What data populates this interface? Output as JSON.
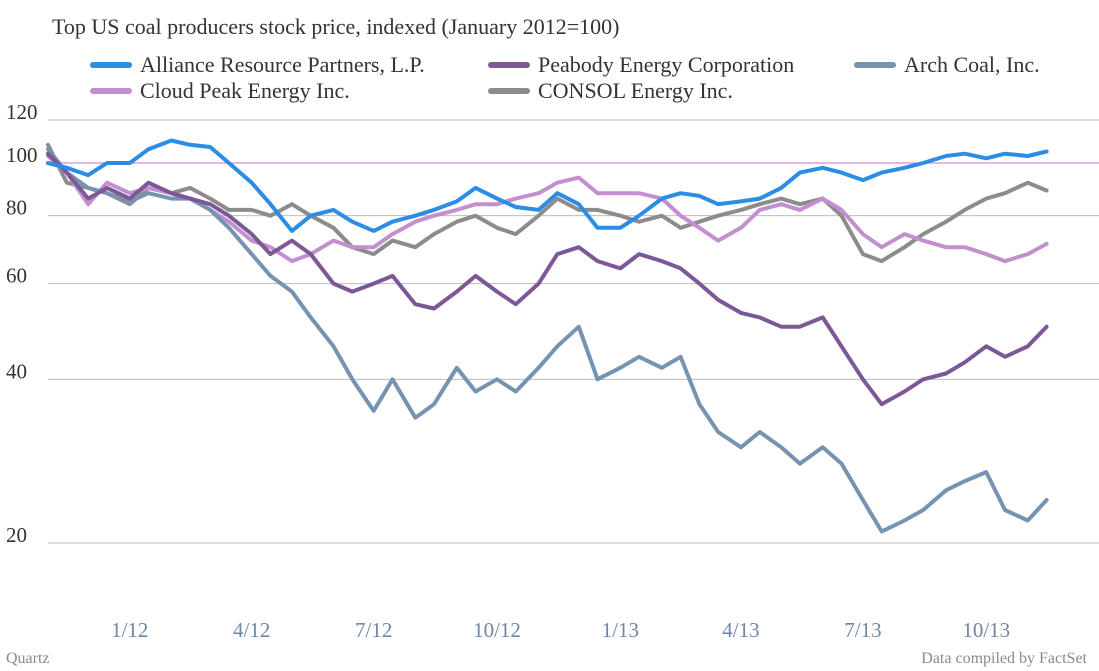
{
  "chart_data": {
    "type": "line",
    "title": "Top US coal producers stock price, indexed (January 2012=100)",
    "xlabel": "",
    "ylabel": "",
    "y_scale": "log",
    "ylim": [
      20,
      120
    ],
    "yticks": [
      20,
      40,
      60,
      80,
      100,
      120
    ],
    "reference_line": 100,
    "reference_line_color": "#d98ad6",
    "x_ticks": [
      "1/12",
      "4/12",
      "7/12",
      "10/12",
      "1/13",
      "4/13",
      "7/13",
      "10/13"
    ],
    "x_tick_dates": [
      "2012-01-01",
      "2012-04-01",
      "2012-07-01",
      "2012-10-01",
      "2013-01-01",
      "2013-04-01",
      "2013-07-01",
      "2013-10-01"
    ],
    "xlim": [
      "2011-11-01",
      "2013-12-01"
    ],
    "legend_position": "top",
    "series": [
      {
        "name": "Alliance Resource Partners, L.P.",
        "color": "#2b8de4",
        "points": [
          [
            "2011-11-01",
            100
          ],
          [
            "2011-11-15",
            98
          ],
          [
            "2011-12-01",
            95
          ],
          [
            "2011-12-15",
            100
          ],
          [
            "2012-01-01",
            100
          ],
          [
            "2012-01-15",
            106
          ],
          [
            "2012-02-01",
            110
          ],
          [
            "2012-02-15",
            108
          ],
          [
            "2012-03-01",
            107
          ],
          [
            "2012-03-15",
            100
          ],
          [
            "2012-04-01",
            92
          ],
          [
            "2012-04-15",
            84
          ],
          [
            "2012-05-01",
            75
          ],
          [
            "2012-05-15",
            80
          ],
          [
            "2012-06-01",
            82
          ],
          [
            "2012-06-15",
            78
          ],
          [
            "2012-07-01",
            75
          ],
          [
            "2012-07-15",
            78
          ],
          [
            "2012-08-01",
            80
          ],
          [
            "2012-08-15",
            82
          ],
          [
            "2012-09-01",
            85
          ],
          [
            "2012-09-15",
            90
          ],
          [
            "2012-10-01",
            86
          ],
          [
            "2012-10-15",
            83
          ],
          [
            "2012-11-01",
            82
          ],
          [
            "2012-11-15",
            88
          ],
          [
            "2012-12-01",
            84
          ],
          [
            "2012-12-15",
            76
          ],
          [
            "2013-01-01",
            76
          ],
          [
            "2013-01-15",
            80
          ],
          [
            "2013-02-01",
            86
          ],
          [
            "2013-02-15",
            88
          ],
          [
            "2013-03-01",
            87
          ],
          [
            "2013-03-15",
            84
          ],
          [
            "2013-04-01",
            85
          ],
          [
            "2013-04-15",
            86
          ],
          [
            "2013-05-01",
            90
          ],
          [
            "2013-05-15",
            96
          ],
          [
            "2013-06-01",
            98
          ],
          [
            "2013-06-15",
            96
          ],
          [
            "2013-07-01",
            93
          ],
          [
            "2013-07-15",
            96
          ],
          [
            "2013-08-01",
            98
          ],
          [
            "2013-08-15",
            100
          ],
          [
            "2013-09-01",
            103
          ],
          [
            "2013-09-15",
            104
          ],
          [
            "2013-10-01",
            102
          ],
          [
            "2013-10-15",
            104
          ],
          [
            "2013-11-01",
            103
          ],
          [
            "2013-11-15",
            105
          ]
        ]
      },
      {
        "name": "Peabody Energy Corporation",
        "color": "#7d5896",
        "points": [
          [
            "2011-11-01",
            104
          ],
          [
            "2011-11-15",
            96
          ],
          [
            "2011-12-01",
            86
          ],
          [
            "2011-12-15",
            90
          ],
          [
            "2012-01-01",
            86
          ],
          [
            "2012-01-15",
            92
          ],
          [
            "2012-02-01",
            88
          ],
          [
            "2012-02-15",
            86
          ],
          [
            "2012-03-01",
            84
          ],
          [
            "2012-03-15",
            80
          ],
          [
            "2012-04-01",
            74
          ],
          [
            "2012-04-15",
            68
          ],
          [
            "2012-05-01",
            72
          ],
          [
            "2012-05-15",
            68
          ],
          [
            "2012-06-01",
            60
          ],
          [
            "2012-06-15",
            58
          ],
          [
            "2012-07-01",
            60
          ],
          [
            "2012-07-15",
            62
          ],
          [
            "2012-08-01",
            55
          ],
          [
            "2012-08-15",
            54
          ],
          [
            "2012-09-01",
            58
          ],
          [
            "2012-09-15",
            62
          ],
          [
            "2012-10-01",
            58
          ],
          [
            "2012-10-15",
            55
          ],
          [
            "2012-11-01",
            60
          ],
          [
            "2012-11-15",
            68
          ],
          [
            "2012-12-01",
            70
          ],
          [
            "2012-12-15",
            66
          ],
          [
            "2013-01-01",
            64
          ],
          [
            "2013-01-15",
            68
          ],
          [
            "2013-02-01",
            66
          ],
          [
            "2013-02-15",
            64
          ],
          [
            "2013-03-01",
            60
          ],
          [
            "2013-03-15",
            56
          ],
          [
            "2013-04-01",
            53
          ],
          [
            "2013-04-15",
            52
          ],
          [
            "2013-05-01",
            50
          ],
          [
            "2013-05-15",
            50
          ],
          [
            "2013-06-01",
            52
          ],
          [
            "2013-06-15",
            46
          ],
          [
            "2013-07-01",
            40
          ],
          [
            "2013-07-15",
            36
          ],
          [
            "2013-08-01",
            38
          ],
          [
            "2013-08-15",
            40
          ],
          [
            "2013-09-01",
            41
          ],
          [
            "2013-09-15",
            43
          ],
          [
            "2013-10-01",
            46
          ],
          [
            "2013-10-15",
            44
          ],
          [
            "2013-11-01",
            46
          ],
          [
            "2013-11-15",
            50
          ]
        ]
      },
      {
        "name": "Arch Coal, Inc.",
        "color": "#7694b2",
        "points": [
          [
            "2011-11-01",
            106
          ],
          [
            "2011-11-15",
            96
          ],
          [
            "2011-12-01",
            90
          ],
          [
            "2011-12-15",
            88
          ],
          [
            "2012-01-01",
            85
          ],
          [
            "2012-01-15",
            88
          ],
          [
            "2012-02-01",
            86
          ],
          [
            "2012-02-15",
            86
          ],
          [
            "2012-03-01",
            82
          ],
          [
            "2012-03-15",
            76
          ],
          [
            "2012-04-01",
            68
          ],
          [
            "2012-04-15",
            62
          ],
          [
            "2012-05-01",
            58
          ],
          [
            "2012-05-15",
            52
          ],
          [
            "2012-06-01",
            46
          ],
          [
            "2012-06-15",
            40
          ],
          [
            "2012-07-01",
            35
          ],
          [
            "2012-07-15",
            40
          ],
          [
            "2012-08-01",
            34
          ],
          [
            "2012-08-15",
            36
          ],
          [
            "2012-09-01",
            42
          ],
          [
            "2012-09-15",
            38
          ],
          [
            "2012-10-01",
            40
          ],
          [
            "2012-10-15",
            38
          ],
          [
            "2012-11-01",
            42
          ],
          [
            "2012-11-15",
            46
          ],
          [
            "2012-12-01",
            50
          ],
          [
            "2012-12-15",
            40
          ],
          [
            "2013-01-01",
            42
          ],
          [
            "2013-01-15",
            44
          ],
          [
            "2013-02-01",
            42
          ],
          [
            "2013-02-15",
            44
          ],
          [
            "2013-03-01",
            36
          ],
          [
            "2013-03-15",
            32
          ],
          [
            "2013-04-01",
            30
          ],
          [
            "2013-04-15",
            32
          ],
          [
            "2013-05-01",
            30
          ],
          [
            "2013-05-15",
            28
          ],
          [
            "2013-06-01",
            30
          ],
          [
            "2013-06-15",
            28
          ],
          [
            "2013-07-01",
            24
          ],
          [
            "2013-07-15",
            21
          ],
          [
            "2013-08-01",
            22
          ],
          [
            "2013-08-15",
            23
          ],
          [
            "2013-09-01",
            25
          ],
          [
            "2013-09-15",
            26
          ],
          [
            "2013-10-01",
            27
          ],
          [
            "2013-10-15",
            23
          ],
          [
            "2013-11-01",
            22
          ],
          [
            "2013-11-15",
            24
          ]
        ]
      },
      {
        "name": "Cloud Peak Energy Inc.",
        "color": "#c48fd0",
        "points": [
          [
            "2011-11-01",
            103
          ],
          [
            "2011-11-15",
            96
          ],
          [
            "2011-12-01",
            84
          ],
          [
            "2011-12-15",
            92
          ],
          [
            "2012-01-01",
            88
          ],
          [
            "2012-01-15",
            90
          ],
          [
            "2012-02-01",
            88
          ],
          [
            "2012-02-15",
            86
          ],
          [
            "2012-03-01",
            82
          ],
          [
            "2012-03-15",
            78
          ],
          [
            "2012-04-01",
            72
          ],
          [
            "2012-04-15",
            70
          ],
          [
            "2012-05-01",
            66
          ],
          [
            "2012-05-15",
            68
          ],
          [
            "2012-06-01",
            72
          ],
          [
            "2012-06-15",
            70
          ],
          [
            "2012-07-01",
            70
          ],
          [
            "2012-07-15",
            74
          ],
          [
            "2012-08-01",
            78
          ],
          [
            "2012-08-15",
            80
          ],
          [
            "2012-09-01",
            82
          ],
          [
            "2012-09-15",
            84
          ],
          [
            "2012-10-01",
            84
          ],
          [
            "2012-10-15",
            86
          ],
          [
            "2012-11-01",
            88
          ],
          [
            "2012-11-15",
            92
          ],
          [
            "2012-12-01",
            94
          ],
          [
            "2012-12-15",
            88
          ],
          [
            "2013-01-01",
            88
          ],
          [
            "2013-01-15",
            88
          ],
          [
            "2013-02-01",
            86
          ],
          [
            "2013-02-15",
            80
          ],
          [
            "2013-03-01",
            76
          ],
          [
            "2013-03-15",
            72
          ],
          [
            "2013-04-01",
            76
          ],
          [
            "2013-04-15",
            82
          ],
          [
            "2013-05-01",
            84
          ],
          [
            "2013-05-15",
            82
          ],
          [
            "2013-06-01",
            86
          ],
          [
            "2013-06-15",
            82
          ],
          [
            "2013-07-01",
            74
          ],
          [
            "2013-07-15",
            70
          ],
          [
            "2013-08-01",
            74
          ],
          [
            "2013-08-15",
            72
          ],
          [
            "2013-09-01",
            70
          ],
          [
            "2013-09-15",
            70
          ],
          [
            "2013-10-01",
            68
          ],
          [
            "2013-10-15",
            66
          ],
          [
            "2013-11-01",
            68
          ],
          [
            "2013-11-15",
            71
          ]
        ]
      },
      {
        "name": "CONSOL Energy Inc.",
        "color": "#8c8c8c",
        "points": [
          [
            "2011-11-01",
            108
          ],
          [
            "2011-11-15",
            92
          ],
          [
            "2011-12-01",
            90
          ],
          [
            "2011-12-15",
            88
          ],
          [
            "2012-01-01",
            84
          ],
          [
            "2012-01-15",
            90
          ],
          [
            "2012-02-01",
            88
          ],
          [
            "2012-02-15",
            90
          ],
          [
            "2012-03-01",
            86
          ],
          [
            "2012-03-15",
            82
          ],
          [
            "2012-04-01",
            82
          ],
          [
            "2012-04-15",
            80
          ],
          [
            "2012-05-01",
            84
          ],
          [
            "2012-05-15",
            80
          ],
          [
            "2012-06-01",
            76
          ],
          [
            "2012-06-15",
            70
          ],
          [
            "2012-07-01",
            68
          ],
          [
            "2012-07-15",
            72
          ],
          [
            "2012-08-01",
            70
          ],
          [
            "2012-08-15",
            74
          ],
          [
            "2012-09-01",
            78
          ],
          [
            "2012-09-15",
            80
          ],
          [
            "2012-10-01",
            76
          ],
          [
            "2012-10-15",
            74
          ],
          [
            "2012-11-01",
            80
          ],
          [
            "2012-11-15",
            86
          ],
          [
            "2012-12-01",
            82
          ],
          [
            "2012-12-15",
            82
          ],
          [
            "2013-01-01",
            80
          ],
          [
            "2013-01-15",
            78
          ],
          [
            "2013-02-01",
            80
          ],
          [
            "2013-02-15",
            76
          ],
          [
            "2013-03-01",
            78
          ],
          [
            "2013-03-15",
            80
          ],
          [
            "2013-04-01",
            82
          ],
          [
            "2013-04-15",
            84
          ],
          [
            "2013-05-01",
            86
          ],
          [
            "2013-05-15",
            84
          ],
          [
            "2013-06-01",
            86
          ],
          [
            "2013-06-15",
            80
          ],
          [
            "2013-07-01",
            68
          ],
          [
            "2013-07-15",
            66
          ],
          [
            "2013-08-01",
            70
          ],
          [
            "2013-08-15",
            74
          ],
          [
            "2013-09-01",
            78
          ],
          [
            "2013-09-15",
            82
          ],
          [
            "2013-10-01",
            86
          ],
          [
            "2013-10-15",
            88
          ],
          [
            "2013-11-01",
            92
          ],
          [
            "2013-11-15",
            89
          ]
        ]
      }
    ]
  },
  "footer": {
    "source_left": "Quartz",
    "source_right": "Data compiled by FactSet"
  }
}
